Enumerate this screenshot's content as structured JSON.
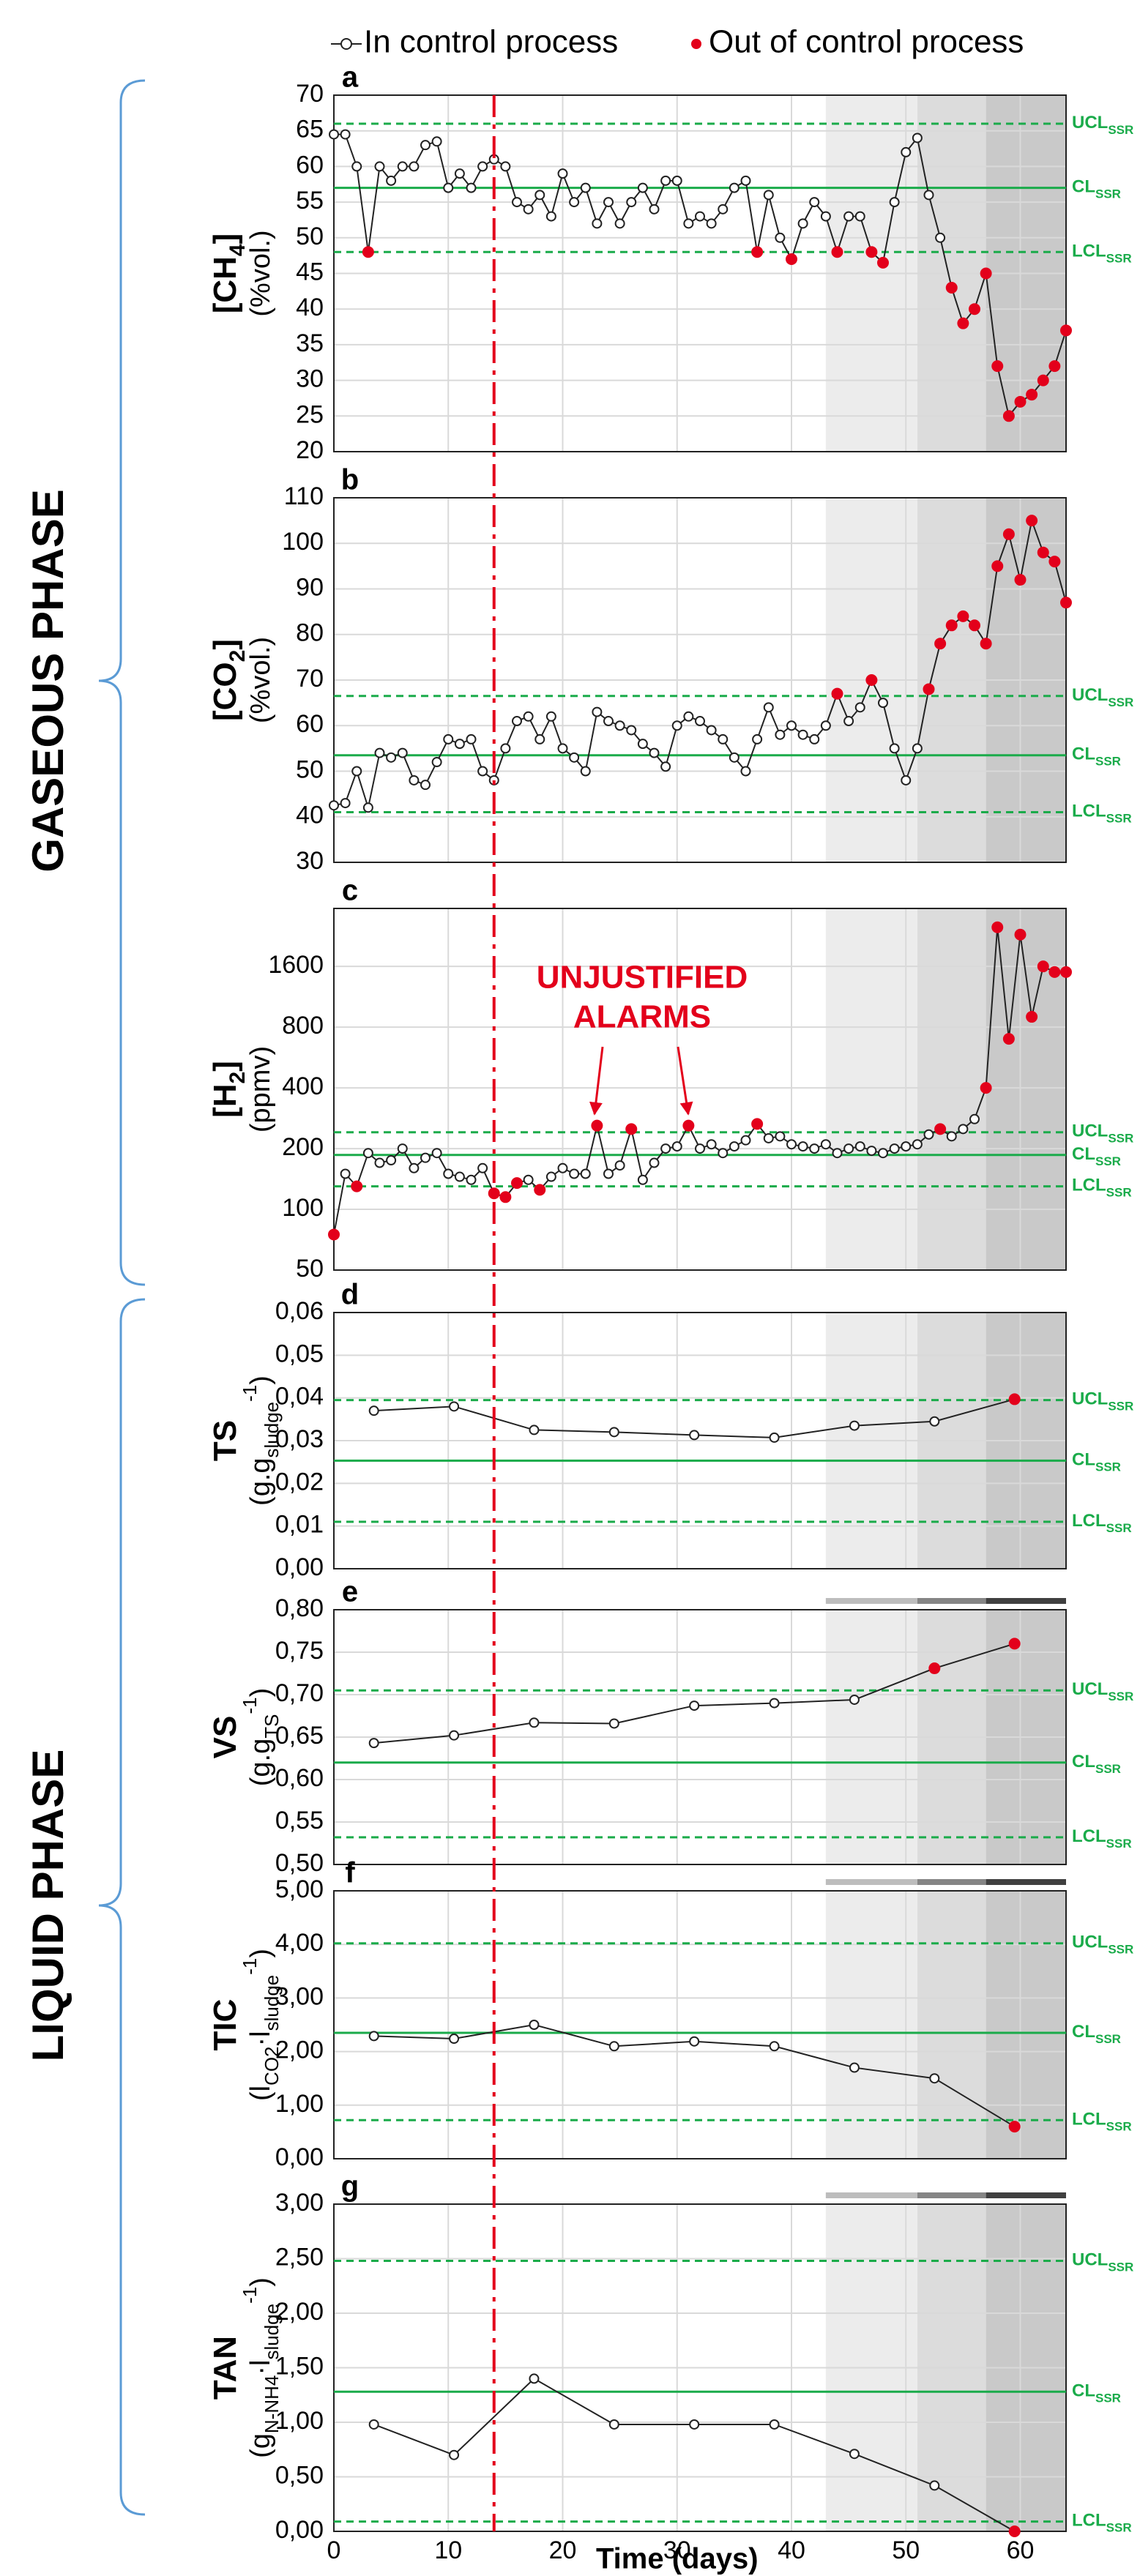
{
  "legend": [
    {
      "name": "In control process",
      "color": "#ffffff"
    },
    {
      "name": "Out of control process",
      "color": "#e3001b"
    }
  ],
  "phases": [
    "GASEOUS PHASE",
    "LIQUID PHASE"
  ],
  "xlim": [
    0,
    64
  ],
  "xticks": [
    0,
    10,
    20,
    30,
    40,
    50,
    60
  ],
  "xlabel": "Time (days)",
  "event_line": {
    "x": 14,
    "color": "#e3001b"
  },
  "shaded_regions": [
    {
      "from": 43,
      "to": 51,
      "color": "#ececec",
      "bar_color": "#bdbdbd"
    },
    {
      "from": 51,
      "to": 57,
      "color": "#dcdcdc",
      "bar_color": "#858585"
    },
    {
      "from": 57,
      "to": 64,
      "color": "#c9c9c9",
      "bar_color": "#404040"
    }
  ],
  "chart_data": [
    {
      "type": "line",
      "label": "a",
      "log": false,
      "phase_bar": false,
      "ylabel": [
        [
          {
            "text": "[CH"
          },
          {
            "text": "4",
            "shift": "sub"
          },
          {
            "text": "]"
          }
        ],
        [
          {
            "text": "(%vol.)"
          }
        ]
      ],
      "ylim": [
        20,
        70
      ],
      "yticks": [
        20,
        25,
        30,
        35,
        40,
        45,
        50,
        55,
        60,
        65,
        70
      ],
      "limits": [
        {
          "name": "UCL",
          "sub": "SSR",
          "value": 66,
          "dash": true
        },
        {
          "name": "CL",
          "sub": "SSR",
          "value": 57,
          "dash": false
        },
        {
          "name": "LCL",
          "sub": "SSR",
          "value": 48,
          "dash": true
        }
      ],
      "x": [
        0,
        1,
        2,
        3,
        4,
        5,
        6,
        7,
        8,
        9,
        10,
        11,
        12,
        13,
        14,
        15,
        16,
        17,
        18,
        19,
        20,
        21,
        22,
        23,
        24,
        25,
        26,
        27,
        28,
        29,
        30,
        31,
        32,
        33,
        34,
        35,
        36,
        37,
        38,
        39,
        40,
        41,
        42,
        43,
        44,
        45,
        46,
        47,
        48,
        49,
        50,
        51,
        52,
        53,
        54,
        55,
        56,
        57,
        58,
        59,
        60,
        61,
        62,
        63,
        64
      ],
      "values": [
        64.5,
        64.5,
        60,
        48,
        60,
        58,
        60,
        60,
        63,
        63.5,
        57,
        59,
        57,
        60,
        61,
        60,
        55,
        54,
        56,
        53,
        59,
        55,
        57,
        52,
        55,
        52,
        55,
        57,
        54,
        58,
        58,
        52,
        53,
        52,
        54,
        57,
        58,
        48,
        56,
        50,
        47,
        52,
        55,
        53,
        48,
        53,
        53,
        48,
        46.5,
        55,
        62,
        64,
        56,
        50,
        43,
        38,
        40,
        45,
        32,
        25,
        27,
        28,
        30,
        32,
        37
      ],
      "out_of_control": [
        false,
        false,
        false,
        true,
        false,
        false,
        false,
        false,
        false,
        false,
        false,
        false,
        false,
        false,
        false,
        false,
        false,
        false,
        false,
        false,
        false,
        false,
        false,
        false,
        false,
        false,
        false,
        false,
        false,
        false,
        false,
        false,
        false,
        false,
        false,
        false,
        false,
        true,
        false,
        false,
        true,
        false,
        false,
        false,
        true,
        false,
        false,
        true,
        true,
        false,
        false,
        false,
        false,
        false,
        true,
        true,
        true,
        true,
        true,
        true,
        true,
        true,
        true,
        true,
        true
      ]
    },
    {
      "type": "line",
      "label": "b",
      "log": false,
      "phase_bar": false,
      "ylabel": [
        [
          {
            "text": "[CO"
          },
          {
            "text": "2",
            "shift": "sub"
          },
          {
            "text": "]"
          }
        ],
        [
          {
            "text": "(%vol.)"
          }
        ]
      ],
      "ylim": [
        30,
        110
      ],
      "yticks": [
        30,
        40,
        50,
        60,
        70,
        80,
        90,
        100,
        110
      ],
      "limits": [
        {
          "name": "UCL",
          "sub": "SSR",
          "value": 66.5,
          "dash": true
        },
        {
          "name": "CL",
          "sub": "SSR",
          "value": 53.5,
          "dash": false
        },
        {
          "name": "LCL",
          "sub": "SSR",
          "value": 41,
          "dash": true
        }
      ],
      "x": [
        0,
        1,
        2,
        3,
        4,
        5,
        6,
        7,
        8,
        9,
        10,
        11,
        12,
        13,
        14,
        15,
        16,
        17,
        18,
        19,
        20,
        21,
        22,
        23,
        24,
        25,
        26,
        27,
        28,
        29,
        30,
        31,
        32,
        33,
        34,
        35,
        36,
        37,
        38,
        39,
        40,
        41,
        42,
        43,
        44,
        45,
        46,
        47,
        48,
        49,
        50,
        51,
        52,
        53,
        54,
        55,
        56,
        57,
        58,
        59,
        60,
        61,
        62,
        63,
        64
      ],
      "values": [
        42.5,
        43,
        50,
        42,
        54,
        53,
        54,
        48,
        47,
        52,
        57,
        56,
        57,
        50,
        48,
        55,
        61,
        62,
        57,
        62,
        55,
        53,
        50,
        63,
        61,
        60,
        59,
        56,
        54,
        51,
        60,
        62,
        61,
        59,
        57,
        53,
        50,
        57,
        64,
        58,
        60,
        58,
        57,
        60,
        67,
        61,
        64,
        70,
        65,
        55,
        48,
        55,
        68,
        78,
        82,
        84,
        82,
        78,
        95,
        102,
        92,
        105,
        98,
        96,
        87
      ],
      "out_of_control": [
        false,
        false,
        false,
        false,
        false,
        false,
        false,
        false,
        false,
        false,
        false,
        false,
        false,
        false,
        false,
        false,
        false,
        false,
        false,
        false,
        false,
        false,
        false,
        false,
        false,
        false,
        false,
        false,
        false,
        false,
        false,
        false,
        false,
        false,
        false,
        false,
        false,
        false,
        false,
        false,
        false,
        false,
        false,
        false,
        true,
        false,
        false,
        true,
        false,
        false,
        false,
        false,
        true,
        true,
        true,
        true,
        true,
        true,
        true,
        true,
        true,
        true,
        true,
        true,
        true
      ]
    },
    {
      "type": "line",
      "label": "c",
      "log": true,
      "phase_bar": false,
      "ylabel": [
        [
          {
            "text": "[H"
          },
          {
            "text": "2",
            "shift": "sub"
          },
          {
            "text": "]"
          }
        ],
        [
          {
            "text": "(ppmv)"
          }
        ]
      ],
      "annotation": [
        "UNJUSTIFIED",
        "ALARMS"
      ],
      "ylim": [
        50,
        3100
      ],
      "yticks": [
        50,
        100,
        200,
        400,
        800,
        1600
      ],
      "limits": [
        {
          "name": "UCL",
          "sub": "SSR",
          "value": 241,
          "dash": true
        },
        {
          "name": "CL",
          "sub": "SSR",
          "value": 186,
          "dash": false
        },
        {
          "name": "LCL",
          "sub": "SSR",
          "value": 130,
          "dash": true
        }
      ],
      "x": [
        0,
        1,
        2,
        3,
        4,
        5,
        6,
        7,
        8,
        9,
        10,
        11,
        12,
        13,
        14,
        15,
        16,
        17,
        18,
        19,
        20,
        21,
        22,
        23,
        24,
        25,
        26,
        27,
        28,
        29,
        30,
        31,
        32,
        33,
        34,
        35,
        36,
        37,
        38,
        39,
        40,
        41,
        42,
        43,
        44,
        45,
        46,
        47,
        48,
        49,
        50,
        51,
        52,
        53,
        54,
        55,
        56,
        57,
        58,
        59,
        60,
        61,
        62,
        63,
        64
      ],
      "values": [
        75,
        150,
        130,
        190,
        170,
        175,
        200,
        160,
        180,
        190,
        150,
        145,
        140,
        160,
        120,
        115,
        135,
        140,
        125,
        145,
        160,
        150,
        150,
        260,
        150,
        165,
        250,
        140,
        170,
        200,
        205,
        260,
        200,
        210,
        190,
        205,
        220,
        265,
        225,
        230,
        210,
        205,
        200,
        210,
        190,
        200,
        205,
        195,
        190,
        200,
        205,
        210,
        235,
        250,
        230,
        250,
        280,
        400,
        2500,
        700,
        2300,
        900,
        1600,
        1500,
        1500
      ],
      "out_of_control": [
        true,
        false,
        true,
        false,
        false,
        false,
        false,
        false,
        false,
        false,
        false,
        false,
        false,
        false,
        true,
        true,
        true,
        false,
        true,
        false,
        false,
        false,
        false,
        true,
        false,
        false,
        true,
        false,
        false,
        false,
        false,
        true,
        false,
        false,
        false,
        false,
        false,
        true,
        false,
        false,
        false,
        false,
        false,
        false,
        false,
        false,
        false,
        false,
        false,
        false,
        false,
        false,
        false,
        true,
        false,
        false,
        false,
        true,
        true,
        true,
        true,
        true,
        true,
        true,
        true
      ]
    },
    {
      "type": "line",
      "label": "d",
      "log": false,
      "phase_bar": false,
      "ylabel": [
        [
          {
            "text": "TS"
          }
        ],
        [
          {
            "text": "(g.g"
          },
          {
            "text": "sludge",
            "shift": "sub"
          },
          {
            "text": "-1",
            "shift": "super"
          },
          {
            "text": ")"
          }
        ]
      ],
      "ylim": [
        0,
        0.06
      ],
      "yticks": [
        {
          "value": 0,
          "label": "0,00"
        },
        {
          "value": 0.01,
          "label": "0,01"
        },
        {
          "value": 0.02,
          "label": "0,02"
        },
        {
          "value": 0.03,
          "label": "0,03"
        },
        {
          "value": 0.04,
          "label": "0,04"
        },
        {
          "value": 0.05,
          "label": "0,05"
        },
        {
          "value": 0.06,
          "label": "0,06"
        }
      ],
      "limits": [
        {
          "name": "UCL",
          "sub": "SSR",
          "value": 0.0395,
          "dash": true
        },
        {
          "name": "CL",
          "sub": "SSR",
          "value": 0.0253,
          "dash": false
        },
        {
          "name": "LCL",
          "sub": "SSR",
          "value": 0.011,
          "dash": true
        }
      ],
      "x": [
        3.5,
        10.5,
        17.5,
        24.5,
        31.5,
        38.5,
        45.5,
        52.5,
        59.5
      ],
      "values": [
        0.037,
        0.038,
        0.0325,
        0.032,
        0.0313,
        0.0307,
        0.0335,
        0.0345,
        0.0397
      ],
      "out_of_control": [
        false,
        false,
        false,
        false,
        false,
        false,
        false,
        false,
        true
      ]
    },
    {
      "type": "line",
      "label": "e",
      "log": false,
      "phase_bar": true,
      "ylabel": [
        [
          {
            "text": "VS"
          }
        ],
        [
          {
            "text": "(g.g"
          },
          {
            "text": "TS",
            "shift": "sub"
          },
          {
            "text": "-1",
            "shift": "super"
          },
          {
            "text": ")"
          }
        ]
      ],
      "ylim": [
        0.5,
        0.8
      ],
      "yticks": [
        {
          "value": 0.5,
          "label": "0,50"
        },
        {
          "value": 0.55,
          "label": "0,55"
        },
        {
          "value": 0.6,
          "label": "0,60"
        },
        {
          "value": 0.65,
          "label": "0,65"
        },
        {
          "value": 0.7,
          "label": "0,70"
        },
        {
          "value": 0.75,
          "label": "0,75"
        },
        {
          "value": 0.8,
          "label": "0,80"
        }
      ],
      "limits": [
        {
          "name": "UCL",
          "sub": "SSR",
          "value": 0.705,
          "dash": true
        },
        {
          "name": "CL",
          "sub": "SSR",
          "value": 0.62,
          "dash": false
        },
        {
          "name": "LCL",
          "sub": "SSR",
          "value": 0.532,
          "dash": true
        }
      ],
      "x": [
        3.5,
        10.5,
        17.5,
        24.5,
        31.5,
        38.5,
        45.5,
        52.5,
        59.5
      ],
      "values": [
        0.643,
        0.652,
        0.667,
        0.666,
        0.687,
        0.69,
        0.694,
        0.731,
        0.76
      ],
      "out_of_control": [
        false,
        false,
        false,
        false,
        false,
        false,
        false,
        true,
        true
      ]
    },
    {
      "type": "line",
      "label": "f",
      "log": false,
      "phase_bar": true,
      "ylabel": [
        [
          {
            "text": "TIC"
          }
        ],
        [
          {
            "text": "(l"
          },
          {
            "text": "CO2",
            "shift": "sub"
          },
          {
            "text": "·l"
          },
          {
            "text": "sludge",
            "shift": "sub"
          },
          {
            "text": "-1",
            "shift": "super"
          },
          {
            "text": ")"
          }
        ]
      ],
      "ylim": [
        0,
        5
      ],
      "yticks": [
        {
          "value": 0,
          "label": "0,00"
        },
        {
          "value": 1,
          "label": "1,00"
        },
        {
          "value": 2,
          "label": "2,00"
        },
        {
          "value": 3,
          "label": "3,00"
        },
        {
          "value": 4,
          "label": "4,00"
        },
        {
          "value": 5,
          "label": "5,00"
        }
      ],
      "limits": [
        {
          "name": "UCL",
          "sub": "SSR",
          "value": 4.02,
          "dash": true
        },
        {
          "name": "CL",
          "sub": "SSR",
          "value": 2.35,
          "dash": false
        },
        {
          "name": "LCL",
          "sub": "SSR",
          "value": 0.72,
          "dash": true
        }
      ],
      "x": [
        3.5,
        10.5,
        17.5,
        24.5,
        31.5,
        38.5,
        45.5,
        52.5,
        59.5
      ],
      "values": [
        2.29,
        2.24,
        2.5,
        2.1,
        2.19,
        2.1,
        1.7,
        1.5,
        0.6
      ],
      "out_of_control": [
        false,
        false,
        false,
        false,
        false,
        false,
        false,
        false,
        true
      ]
    },
    {
      "type": "line",
      "label": "g",
      "log": false,
      "phase_bar": true,
      "ylabel": [
        [
          {
            "text": "TAN"
          }
        ],
        [
          {
            "text": "(g"
          },
          {
            "text": "N-NH4",
            "shift": "sub"
          },
          {
            "text": "·l"
          },
          {
            "text": "sludge",
            "shift": "sub"
          },
          {
            "text": "-1",
            "shift": "super"
          },
          {
            "text": ")"
          }
        ]
      ],
      "ylim": [
        0,
        3
      ],
      "yticks": [
        {
          "value": 0,
          "label": "0,00"
        },
        {
          "value": 0.5,
          "label": "0,50"
        },
        {
          "value": 1,
          "label": "1,00"
        },
        {
          "value": 1.5,
          "label": "1,50"
        },
        {
          "value": 2,
          "label": "2,00"
        },
        {
          "value": 2.5,
          "label": "2,50"
        },
        {
          "value": 3,
          "label": "3,00"
        }
      ],
      "limits": [
        {
          "name": "UCL",
          "sub": "SSR",
          "value": 2.48,
          "dash": true
        },
        {
          "name": "CL",
          "sub": "SSR",
          "value": 1.28,
          "dash": false
        },
        {
          "name": "LCL",
          "sub": "SSR",
          "value": 0.09,
          "dash": true
        }
      ],
      "x": [
        3.5,
        10.5,
        17.5,
        24.5,
        31.5,
        38.5,
        45.5,
        52.5,
        59.5
      ],
      "values": [
        0.98,
        0.7,
        1.4,
        0.98,
        0.98,
        0.98,
        0.71,
        0.42,
        0
      ],
      "out_of_control": [
        false,
        false,
        false,
        false,
        false,
        false,
        false,
        false,
        true
      ]
    }
  ]
}
